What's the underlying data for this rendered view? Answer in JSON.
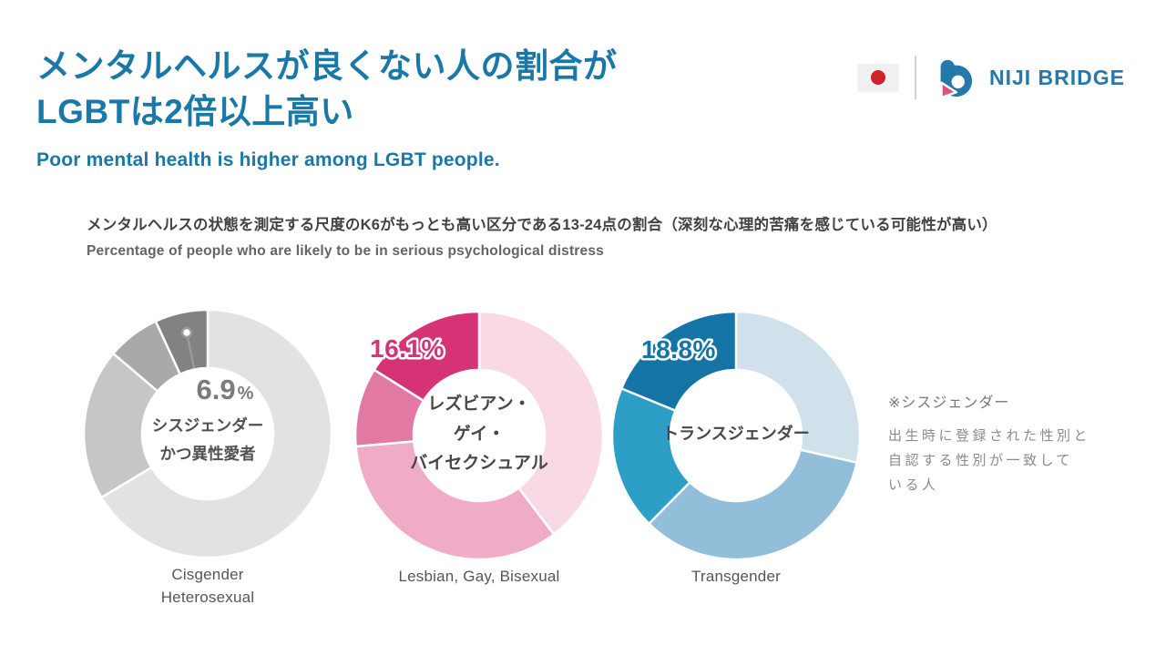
{
  "header": {
    "title_lines": [
      "メンタルヘルスが良くない人の割合が",
      "LGBTは2倍以上高い"
    ],
    "subtitle": "Poor mental health is higher among LGBT people.",
    "accent_color": "#1a78a8"
  },
  "logo": {
    "brand_name": "NIJI BRIDGE",
    "brand_color": "#2478aa",
    "mark_pink": "#e2517e",
    "flag_red": "#cf2229"
  },
  "description": {
    "jp": "メンタルヘルスの状態を測定する尺度のK6がもっとも高い区分である13-24点の割合（深刻な心理的苦痛を感じている可能性が高い）",
    "en": "Percentage of people who are likely to be in serious psychological distress"
  },
  "chart_data": {
    "type": "pie",
    "variant": "donut",
    "title_jp": "メンタルヘルスの状態を測定する尺度のK6がもっとも高い区分である13-24点の割合（深刻な心理的苦痛を感じている可能性が高い）",
    "title_en": "Percentage of people who are likely to be in serious psychological distress",
    "charts": [
      {
        "name": "cisgender-heterosexual",
        "center_lines": [
          "シスジェンダー",
          "かつ異性愛者"
        ],
        "caption_lines": [
          "Cisgender",
          "Heterosexual"
        ],
        "value": 6.9,
        "value_number": "6.9",
        "value_suffix": "%",
        "value_label": "6.9%",
        "value_color": "#7b7b7d",
        "slices": [
          {
            "value": 66.4,
            "color": "#e2e2e4"
          },
          {
            "value": 19.8,
            "color": "#c6c6c8"
          },
          {
            "value": 6.9,
            "color": "#a9a9ab"
          },
          {
            "value": 6.9,
            "color": "#828285",
            "highlight": true
          }
        ]
      },
      {
        "name": "lesbian-gay-bisexual",
        "center_lines": [
          "レズビアン・",
          "ゲイ・",
          "バイセクシュアル"
        ],
        "caption_lines": [
          "Lesbian, Gay, Bisexual"
        ],
        "value": 16.1,
        "value_label": "16.1%",
        "value_color": "#d63276",
        "slices": [
          {
            "value": 39.7,
            "color": "#f8d9e5"
          },
          {
            "value": 33.9,
            "color": "#f0abc6"
          },
          {
            "value": 10.3,
            "color": "#e279a3"
          },
          {
            "value": 16.1,
            "color": "#d63276",
            "highlight": true
          }
        ]
      },
      {
        "name": "transgender",
        "center_lines": [
          "トランスジェンダー"
        ],
        "caption_lines": [
          "Transgender"
        ],
        "value": 18.8,
        "value_label": "18.8%",
        "value_color": "#1474a6",
        "slices": [
          {
            "value": 28.5,
            "color": "#d0e1ec"
          },
          {
            "value": 33.9,
            "color": "#92bed9"
          },
          {
            "value": 18.8,
            "color": "#2d9fc7"
          },
          {
            "value": 18.8,
            "color": "#1474a6",
            "highlight": true
          }
        ]
      }
    ]
  },
  "footnote": {
    "title": "※シスジェンダー",
    "body_lines": [
      "出生時に登録された性別と",
      "自認する性別が一致して",
      "いる人"
    ]
  }
}
